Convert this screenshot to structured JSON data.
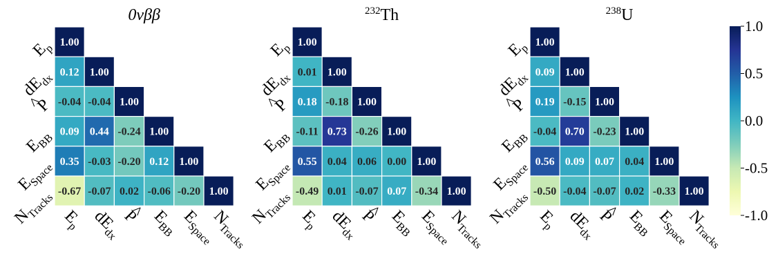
{
  "chart_data": [
    {
      "type": "heatmap",
      "title": {
        "base": "0νββ",
        "sup": ""
      },
      "variables": [
        {
          "base": "E",
          "sub": "p",
          "hat": false
        },
        {
          "base": "dE",
          "sub": "dx",
          "hat": false
        },
        {
          "base": "P",
          "sub": "",
          "hat": true
        },
        {
          "base": "E",
          "sub": "BB",
          "hat": false
        },
        {
          "base": "E",
          "sub": "Space",
          "hat": false
        },
        {
          "base": "N",
          "sub": "Tracks",
          "hat": false
        }
      ],
      "matrix": [
        [
          "1.00"
        ],
        [
          "0.12",
          "1.00"
        ],
        [
          "-0.04",
          "-0.04",
          "1.00"
        ],
        [
          "0.09",
          "0.44",
          "-0.24",
          "1.00"
        ],
        [
          "0.35",
          "-0.03",
          "-0.20",
          "0.12",
          "1.00"
        ],
        [
          "-0.67",
          "-0.07",
          "0.02",
          "-0.06",
          "-0.20",
          "1.00"
        ]
      ]
    },
    {
      "type": "heatmap",
      "title": {
        "base": "Th",
        "sup": "232"
      },
      "variables": [
        {
          "base": "E",
          "sub": "p",
          "hat": false
        },
        {
          "base": "dE",
          "sub": "dx",
          "hat": false
        },
        {
          "base": "P",
          "sub": "",
          "hat": true
        },
        {
          "base": "E",
          "sub": "BB",
          "hat": false
        },
        {
          "base": "E",
          "sub": "Space",
          "hat": false
        },
        {
          "base": "N",
          "sub": "Tracks",
          "hat": false
        }
      ],
      "matrix": [
        [
          "1.00"
        ],
        [
          "0.01",
          "1.00"
        ],
        [
          "0.18",
          "-0.18",
          "1.00"
        ],
        [
          "-0.11",
          "0.73",
          "-0.26",
          "1.00"
        ],
        [
          "0.55",
          "0.04",
          "0.06",
          "0.00",
          "1.00"
        ],
        [
          "-0.49",
          "0.01",
          "-0.07",
          "0.07",
          "-0.34",
          "1.00"
        ]
      ]
    },
    {
      "type": "heatmap",
      "title": {
        "base": "U",
        "sup": "238"
      },
      "variables": [
        {
          "base": "E",
          "sub": "p",
          "hat": false
        },
        {
          "base": "dE",
          "sub": "dx",
          "hat": false
        },
        {
          "base": "P",
          "sub": "",
          "hat": true
        },
        {
          "base": "E",
          "sub": "BB",
          "hat": false
        },
        {
          "base": "E",
          "sub": "Space",
          "hat": false
        },
        {
          "base": "N",
          "sub": "Tracks",
          "hat": false
        }
      ],
      "matrix": [
        [
          "1.00"
        ],
        [
          "0.09",
          "1.00"
        ],
        [
          "0.19",
          "-0.15",
          "1.00"
        ],
        [
          "-0.04",
          "0.70",
          "-0.23",
          "1.00"
        ],
        [
          "0.56",
          "0.09",
          "0.07",
          "0.04",
          "1.00"
        ],
        [
          "-0.50",
          "-0.04",
          "-0.07",
          "0.02",
          "-0.33",
          "1.00"
        ]
      ]
    }
  ],
  "colorbar": {
    "colormap": "YlGnBu",
    "range": [
      -1.0,
      1.0
    ],
    "ticks": [
      "1.0",
      "0.5",
      "0.0",
      "-0.5",
      "-1.0"
    ],
    "colors": [
      "#ffffd9",
      "#edf8b1",
      "#c7e9b4",
      "#7fcdbb",
      "#41b6c4",
      "#1d91c0",
      "#225ea8",
      "#253494",
      "#081d58"
    ]
  }
}
